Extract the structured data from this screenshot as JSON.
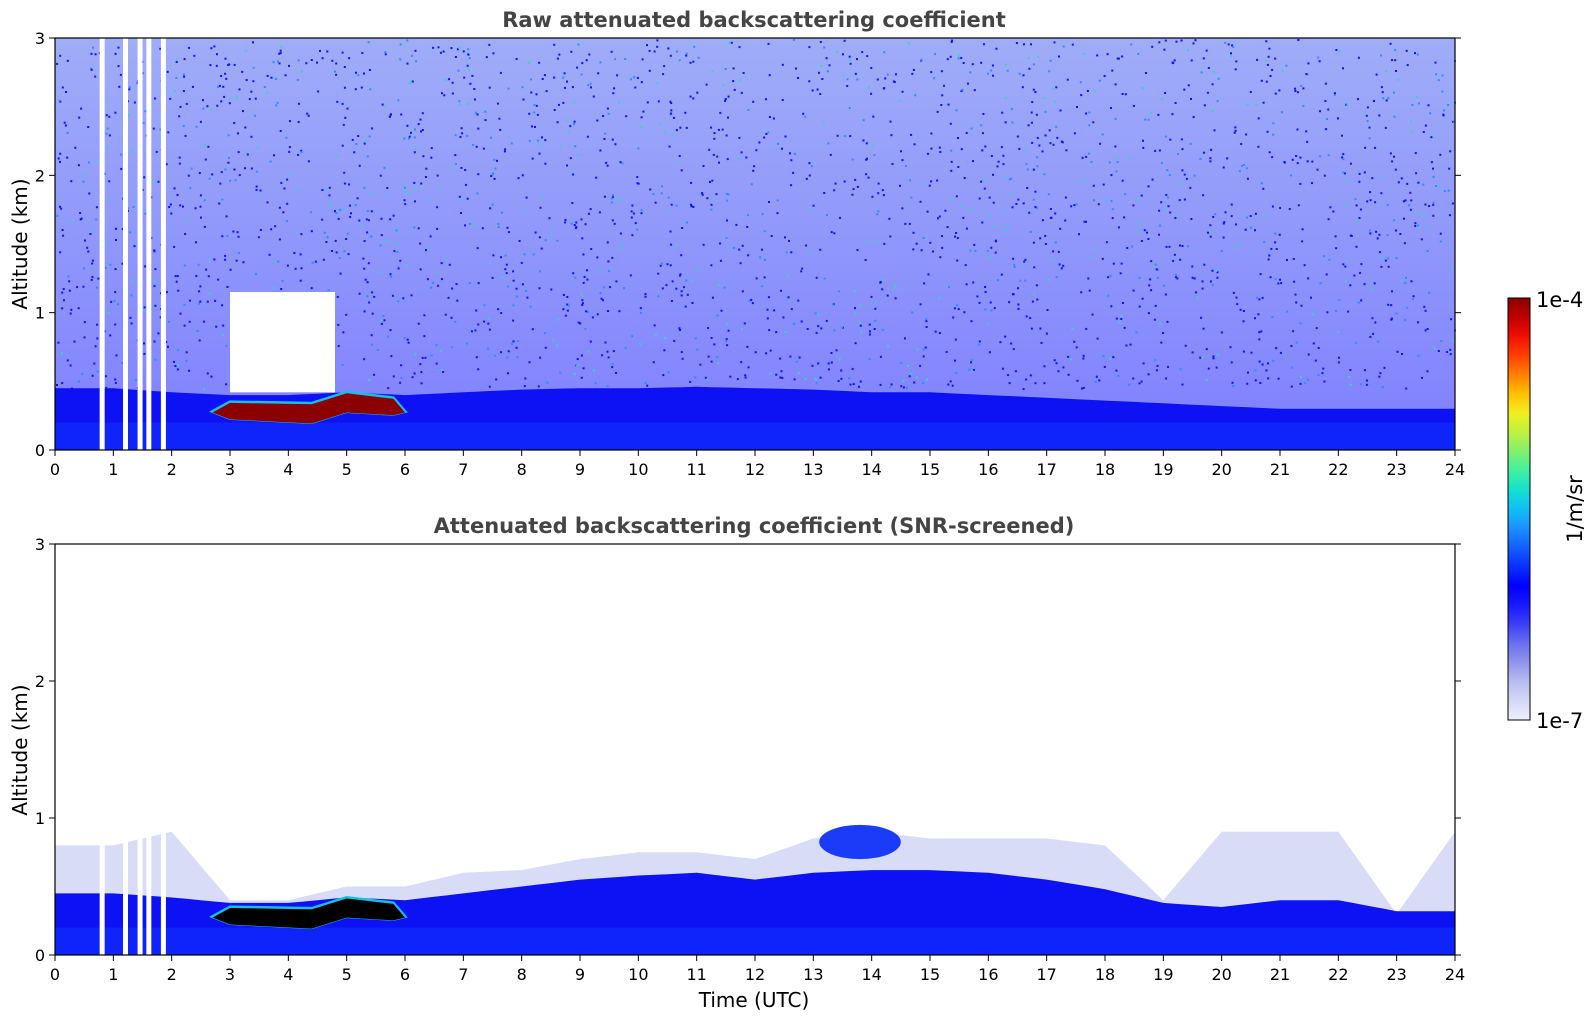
{
  "chart_data": [
    {
      "type": "heatmap",
      "title": "Raw attenuated backscattering coefficient",
      "xlabel": "",
      "ylabel": "Altitude (km)",
      "xlim": [
        0,
        24
      ],
      "ylim": [
        0,
        3
      ],
      "xticks": [
        "0",
        "1",
        "2",
        "3",
        "4",
        "5",
        "6",
        "7",
        "8",
        "9",
        "10",
        "11",
        "12",
        "13",
        "14",
        "15",
        "16",
        "17",
        "18",
        "19",
        "20",
        "21",
        "22",
        "23",
        "24"
      ],
      "yticks": [
        "0",
        "1",
        "2",
        "3"
      ],
      "x": [
        0,
        1,
        2,
        3,
        4,
        5,
        6,
        7,
        8,
        9,
        10,
        11,
        12,
        13,
        14,
        15,
        16,
        17,
        18,
        19,
        20,
        21,
        22,
        23,
        24
      ],
      "boundary_layer_top_km": [
        0.45,
        0.45,
        0.42,
        0.4,
        0.4,
        0.42,
        0.4,
        0.42,
        0.44,
        0.45,
        0.45,
        0.46,
        0.45,
        0.44,
        0.42,
        0.42,
        0.4,
        0.38,
        0.36,
        0.34,
        0.32,
        0.3,
        0.3,
        0.3,
        0.3
      ],
      "cloud_layer": {
        "x_start": 2.7,
        "x_end": 6.0,
        "base_km": 0.18,
        "top_km": 0.38,
        "value": "1e-4"
      },
      "data_gaps_x": [
        0.8,
        1.2,
        1.45,
        1.6,
        1.85
      ],
      "grid": false
    },
    {
      "type": "heatmap",
      "title": "Attenuated backscattering coefficient (SNR-screened)",
      "xlabel": "Time (UTC)",
      "ylabel": "Altitude (km)",
      "xlim": [
        0,
        24
      ],
      "ylim": [
        0,
        3
      ],
      "xticks": [
        "0",
        "1",
        "2",
        "3",
        "4",
        "5",
        "6",
        "7",
        "8",
        "9",
        "10",
        "11",
        "12",
        "13",
        "14",
        "15",
        "16",
        "17",
        "18",
        "19",
        "20",
        "21",
        "22",
        "23",
        "24"
      ],
      "yticks": [
        "0",
        "1",
        "2",
        "3"
      ],
      "x": [
        0,
        1,
        2,
        3,
        4,
        5,
        6,
        7,
        8,
        9,
        10,
        11,
        12,
        13,
        14,
        15,
        16,
        17,
        18,
        19,
        20,
        21,
        22,
        23,
        24
      ],
      "boundary_layer_top_km": [
        0.45,
        0.45,
        0.42,
        0.38,
        0.38,
        0.42,
        0.4,
        0.45,
        0.5,
        0.55,
        0.58,
        0.6,
        0.55,
        0.6,
        0.62,
        0.62,
        0.6,
        0.55,
        0.48,
        0.38,
        0.35,
        0.4,
        0.4,
        0.32,
        0.32
      ],
      "aerosol_haze_top_km": [
        0.8,
        0.8,
        0.9,
        0.4,
        0.4,
        0.5,
        0.5,
        0.6,
        0.62,
        0.7,
        0.75,
        0.75,
        0.7,
        0.85,
        0.9,
        0.85,
        0.85,
        0.85,
        0.8,
        0.4,
        0.9,
        0.9,
        0.9,
        0.3,
        0.9
      ],
      "cloud_layer": {
        "x_start": 2.7,
        "x_end": 6.0,
        "base_km": 0.18,
        "top_km": 0.38,
        "value": "above range"
      },
      "elevated_layer": {
        "x_start": 13.1,
        "x_end": 14.5,
        "base_km": 0.7,
        "top_km": 0.95
      },
      "data_gaps_x": [
        0.8,
        1.2,
        1.45,
        1.6,
        1.85
      ],
      "grid": false
    }
  ],
  "colorbar": {
    "label": "1/m/sr",
    "max_label": "1e-4",
    "min_label": "1e-7",
    "colors": [
      "#eef0fb",
      "#d5d8f5",
      "#b7bcf0",
      "#8f95ea",
      "#6a6ff0",
      "#3c40f5",
      "#1818ff",
      "#0000ff",
      "#0a2fff",
      "#1260ff",
      "#1b90ff",
      "#10bff5",
      "#14e0d0",
      "#40f0a0",
      "#80f070",
      "#c0f040",
      "#f0f020",
      "#ffc000",
      "#ff8000",
      "#ff4000",
      "#f01000",
      "#c00000",
      "#8b0000"
    ]
  }
}
